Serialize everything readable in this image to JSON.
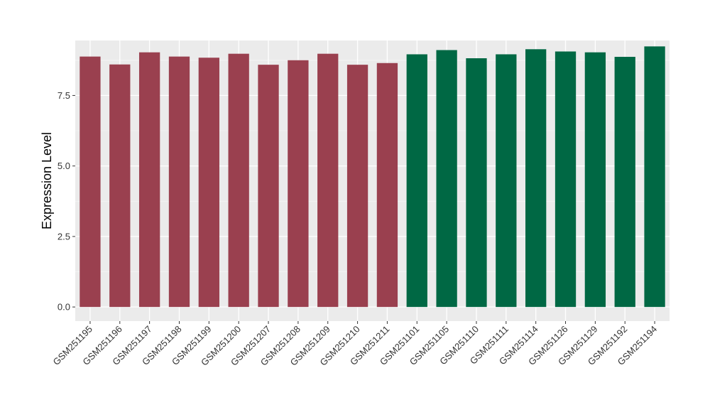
{
  "chart_data": {
    "type": "bar",
    "title": "",
    "xlabel": "",
    "ylabel": "Expression Level",
    "ylim": [
      -0.5,
      9.45
    ],
    "yticks": [
      0.0,
      2.5,
      5.0,
      7.5
    ],
    "ytick_labels": [
      "0.0",
      "2.5",
      "5.0",
      "7.5"
    ],
    "grid": true,
    "panel_background": "#ebebeb",
    "categories": [
      "GSM251195",
      "GSM251196",
      "GSM251197",
      "GSM251198",
      "GSM251199",
      "GSM251200",
      "GSM251207",
      "GSM251208",
      "GSM251209",
      "GSM251210",
      "GSM251211",
      "GSM251101",
      "GSM251105",
      "GSM251110",
      "GSM251111",
      "GSM251114",
      "GSM251126",
      "GSM251129",
      "GSM251192",
      "GSM251194"
    ],
    "values": [
      8.88,
      8.6,
      9.03,
      8.88,
      8.84,
      8.98,
      8.59,
      8.75,
      8.98,
      8.59,
      8.65,
      8.96,
      9.11,
      8.82,
      8.96,
      9.14,
      9.06,
      9.03,
      8.87,
      9.24
    ],
    "group_colors": [
      "#9a404f",
      "#9a404f",
      "#9a404f",
      "#9a404f",
      "#9a404f",
      "#9a404f",
      "#9a404f",
      "#9a404f",
      "#9a404f",
      "#9a404f",
      "#9a404f",
      "#006844",
      "#006844",
      "#006844",
      "#006844",
      "#006844",
      "#006844",
      "#006844",
      "#006844",
      "#006844"
    ]
  }
}
